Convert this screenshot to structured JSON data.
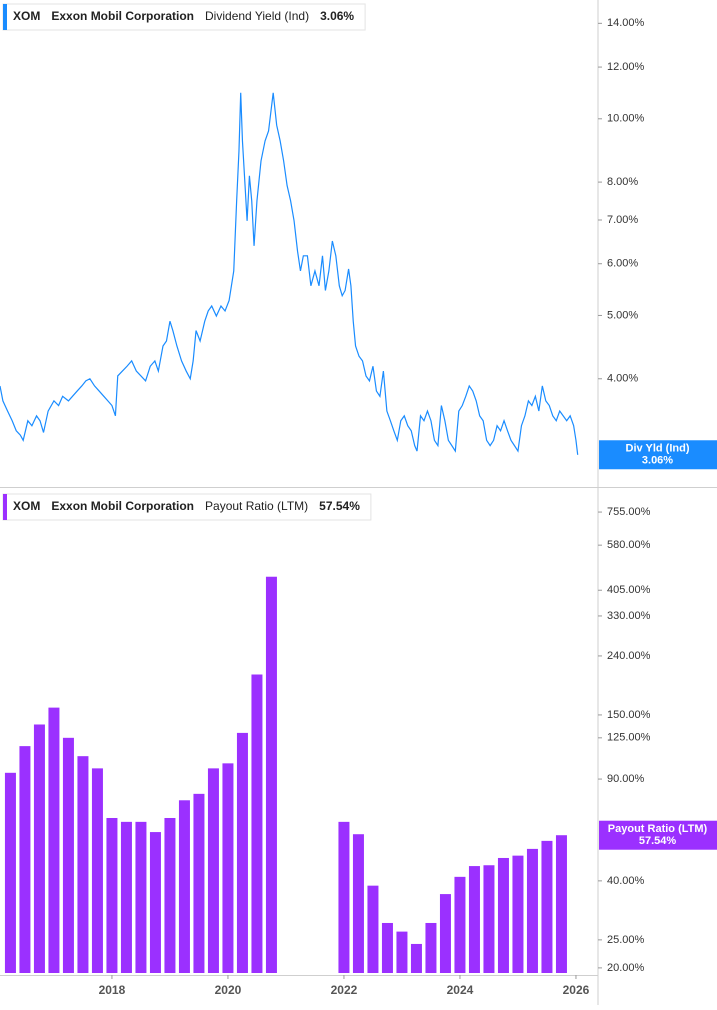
{
  "chart_data": [
    {
      "type": "line",
      "ticker": "XOM",
      "company": "Exxon Mobil Corporation",
      "last_value_label": "3.06%",
      "x": [
        2016.07,
        2016.12,
        2016.2,
        2016.28,
        2016.35,
        2016.42,
        2016.47,
        2016.55,
        2016.62,
        2016.7,
        2016.76,
        2016.82,
        2016.9,
        2017.0,
        2017.08,
        2017.15,
        2017.25,
        2017.32,
        2017.4,
        2017.48,
        2017.55,
        2017.62,
        2017.7,
        2017.78,
        2017.86,
        2017.93,
        2018.0,
        2018.06,
        2018.1,
        2018.18,
        2018.26,
        2018.34,
        2018.42,
        2018.5,
        2018.58,
        2018.66,
        2018.74,
        2018.8,
        2018.88,
        2018.94,
        2019.0,
        2019.05,
        2019.12,
        2019.2,
        2019.28,
        2019.35,
        2019.4,
        2019.45,
        2019.52,
        2019.6,
        2019.66,
        2019.72,
        2019.8,
        2019.88,
        2019.95,
        2020.02,
        2020.1,
        2020.15,
        2020.19,
        2020.22,
        2020.25,
        2020.29,
        2020.33,
        2020.37,
        2020.41,
        2020.45,
        2020.5,
        2020.57,
        2020.64,
        2020.7,
        2020.75,
        2020.78,
        2020.84,
        2020.9,
        2020.96,
        2021.02,
        2021.08,
        2021.14,
        2021.2,
        2021.25,
        2021.3,
        2021.37,
        2021.43,
        2021.5,
        2021.57,
        2021.63,
        2021.68,
        2021.74,
        2021.8,
        2021.86,
        2021.92,
        2021.97,
        2022.02,
        2022.08,
        2022.12,
        2022.16,
        2022.2,
        2022.26,
        2022.32,
        2022.38,
        2022.44,
        2022.5,
        2022.56,
        2022.62,
        2022.68,
        2022.74,
        2022.8,
        2022.86,
        2022.92,
        2022.98,
        2023.04,
        2023.1,
        2023.16,
        2023.22,
        2023.26,
        2023.32,
        2023.38,
        2023.44,
        2023.5,
        2023.56,
        2023.62,
        2023.68,
        2023.74,
        2023.8,
        2023.86,
        2023.92,
        2023.98,
        2024.04,
        2024.1,
        2024.16,
        2024.22,
        2024.28,
        2024.34,
        2024.4,
        2024.46,
        2024.52,
        2024.58,
        2024.64,
        2024.7,
        2024.76,
        2024.82,
        2024.88,
        2024.94,
        2025.0,
        2025.06,
        2025.12,
        2025.18,
        2025.24,
        2025.3,
        2025.36,
        2025.42,
        2025.48,
        2025.54,
        2025.6,
        2025.66,
        2025.72,
        2025.78,
        2025.84,
        2025.9,
        2025.96,
        2026.0,
        2026.03
      ],
      "series": [
        {
          "name": "Dividend Yield (Ind)",
          "short_name": "Div Yld (Ind)",
          "color": "#1a8cff",
          "values": [
            3.9,
            3.7,
            3.57,
            3.45,
            3.33,
            3.28,
            3.22,
            3.45,
            3.39,
            3.51,
            3.45,
            3.31,
            3.57,
            3.7,
            3.64,
            3.76,
            3.7,
            3.76,
            3.83,
            3.9,
            3.97,
            4.0,
            3.9,
            3.83,
            3.76,
            3.7,
            3.64,
            3.51,
            4.04,
            4.11,
            4.18,
            4.26,
            4.11,
            4.04,
            3.97,
            4.18,
            4.26,
            4.11,
            4.49,
            4.57,
            4.9,
            4.74,
            4.49,
            4.26,
            4.11,
            4.0,
            4.26,
            4.74,
            4.57,
            4.9,
            5.08,
            5.17,
            4.99,
            5.17,
            5.08,
            5.27,
            5.85,
            7.49,
            8.93,
            10.96,
            9.25,
            8.04,
            6.98,
            8.18,
            7.49,
            6.39,
            7.49,
            8.62,
            9.25,
            9.58,
            10.42,
            10.96,
            9.78,
            9.25,
            8.62,
            7.9,
            7.49,
            6.98,
            6.27,
            5.85,
            6.17,
            6.17,
            5.55,
            5.85,
            5.55,
            6.17,
            5.46,
            5.85,
            6.5,
            6.17,
            5.55,
            5.36,
            5.46,
            5.89,
            5.55,
            4.9,
            4.49,
            4.33,
            4.26,
            4.04,
            3.97,
            4.18,
            3.83,
            3.76,
            4.11,
            3.57,
            3.45,
            3.33,
            3.22,
            3.45,
            3.51,
            3.39,
            3.33,
            3.16,
            3.1,
            3.51,
            3.45,
            3.57,
            3.45,
            3.22,
            3.16,
            3.64,
            3.45,
            3.22,
            3.16,
            3.1,
            3.57,
            3.64,
            3.76,
            3.9,
            3.83,
            3.7,
            3.51,
            3.45,
            3.22,
            3.16,
            3.22,
            3.39,
            3.33,
            3.45,
            3.33,
            3.22,
            3.16,
            3.1,
            3.39,
            3.51,
            3.7,
            3.64,
            3.76,
            3.57,
            3.9,
            3.7,
            3.64,
            3.51,
            3.45,
            3.57,
            3.51,
            3.45,
            3.51,
            3.39,
            3.22,
            3.06
          ]
        }
      ],
      "xlim": [
        2016.07,
        2026.38
      ],
      "ylim": [
        2.9,
        15.2
      ],
      "log_y": true,
      "yticks": [
        {
          "value": 14,
          "label": "14.00%"
        },
        {
          "value": 12,
          "label": "12.00%"
        },
        {
          "value": 10,
          "label": "10.00%"
        },
        {
          "value": 8,
          "label": "8.00%"
        },
        {
          "value": 7,
          "label": "7.00%"
        },
        {
          "value": 6,
          "label": "6.00%"
        },
        {
          "value": 5,
          "label": "5.00%"
        },
        {
          "value": 4,
          "label": "4.00%"
        }
      ]
    },
    {
      "type": "bar",
      "ticker": "XOM",
      "company": "Exxon Mobil Corporation",
      "last_value_label": "57.54%",
      "x": [
        2016.25,
        2016.5,
        2016.75,
        2017.0,
        2017.25,
        2017.5,
        2017.75,
        2018.0,
        2018.25,
        2018.5,
        2018.75,
        2019.0,
        2019.25,
        2019.5,
        2019.75,
        2020.0,
        2020.25,
        2020.5,
        2020.75,
        2022.0,
        2022.25,
        2022.5,
        2022.75,
        2023.0,
        2023.25,
        2023.5,
        2023.75,
        2024.0,
        2024.25,
        2024.5,
        2024.75,
        2025.0,
        2025.25,
        2025.5,
        2025.75
      ],
      "series": [
        {
          "name": "Payout Ratio (LTM)",
          "short_name": "Payout Ratio (LTM)",
          "color": "#9b30ff",
          "values": [
            94.6,
            117,
            139,
            159,
            125,
            108,
            98,
            66,
            64,
            64,
            59,
            66,
            76,
            80,
            98,
            102,
            130,
            207,
            451,
            64,
            58,
            38.5,
            28.6,
            26.7,
            24.2,
            28.6,
            36,
            41.3,
            45,
            45.3,
            48,
            48.9,
            51.6,
            55,
            57.54
          ]
        }
      ],
      "xlim": [
        2016.07,
        2026.38
      ],
      "ylim": [
        19.2,
        900
      ],
      "log_y": true,
      "xticks": [
        2018,
        2020,
        2022,
        2024,
        2026
      ],
      "yticks": [
        {
          "value": 755,
          "label": "755.00%"
        },
        {
          "value": 580,
          "label": "580.00%"
        },
        {
          "value": 405,
          "label": "405.00%"
        },
        {
          "value": 330,
          "label": "330.00%"
        },
        {
          "value": 240,
          "label": "240.00%"
        },
        {
          "value": 150,
          "label": "150.00%"
        },
        {
          "value": 125,
          "label": "125.00%"
        },
        {
          "value": 90,
          "label": "90.00%"
        },
        {
          "value": 40,
          "label": "40.00%"
        },
        {
          "value": 25,
          "label": "25.00%"
        },
        {
          "value": 20,
          "label": "20.00%"
        }
      ]
    }
  ]
}
